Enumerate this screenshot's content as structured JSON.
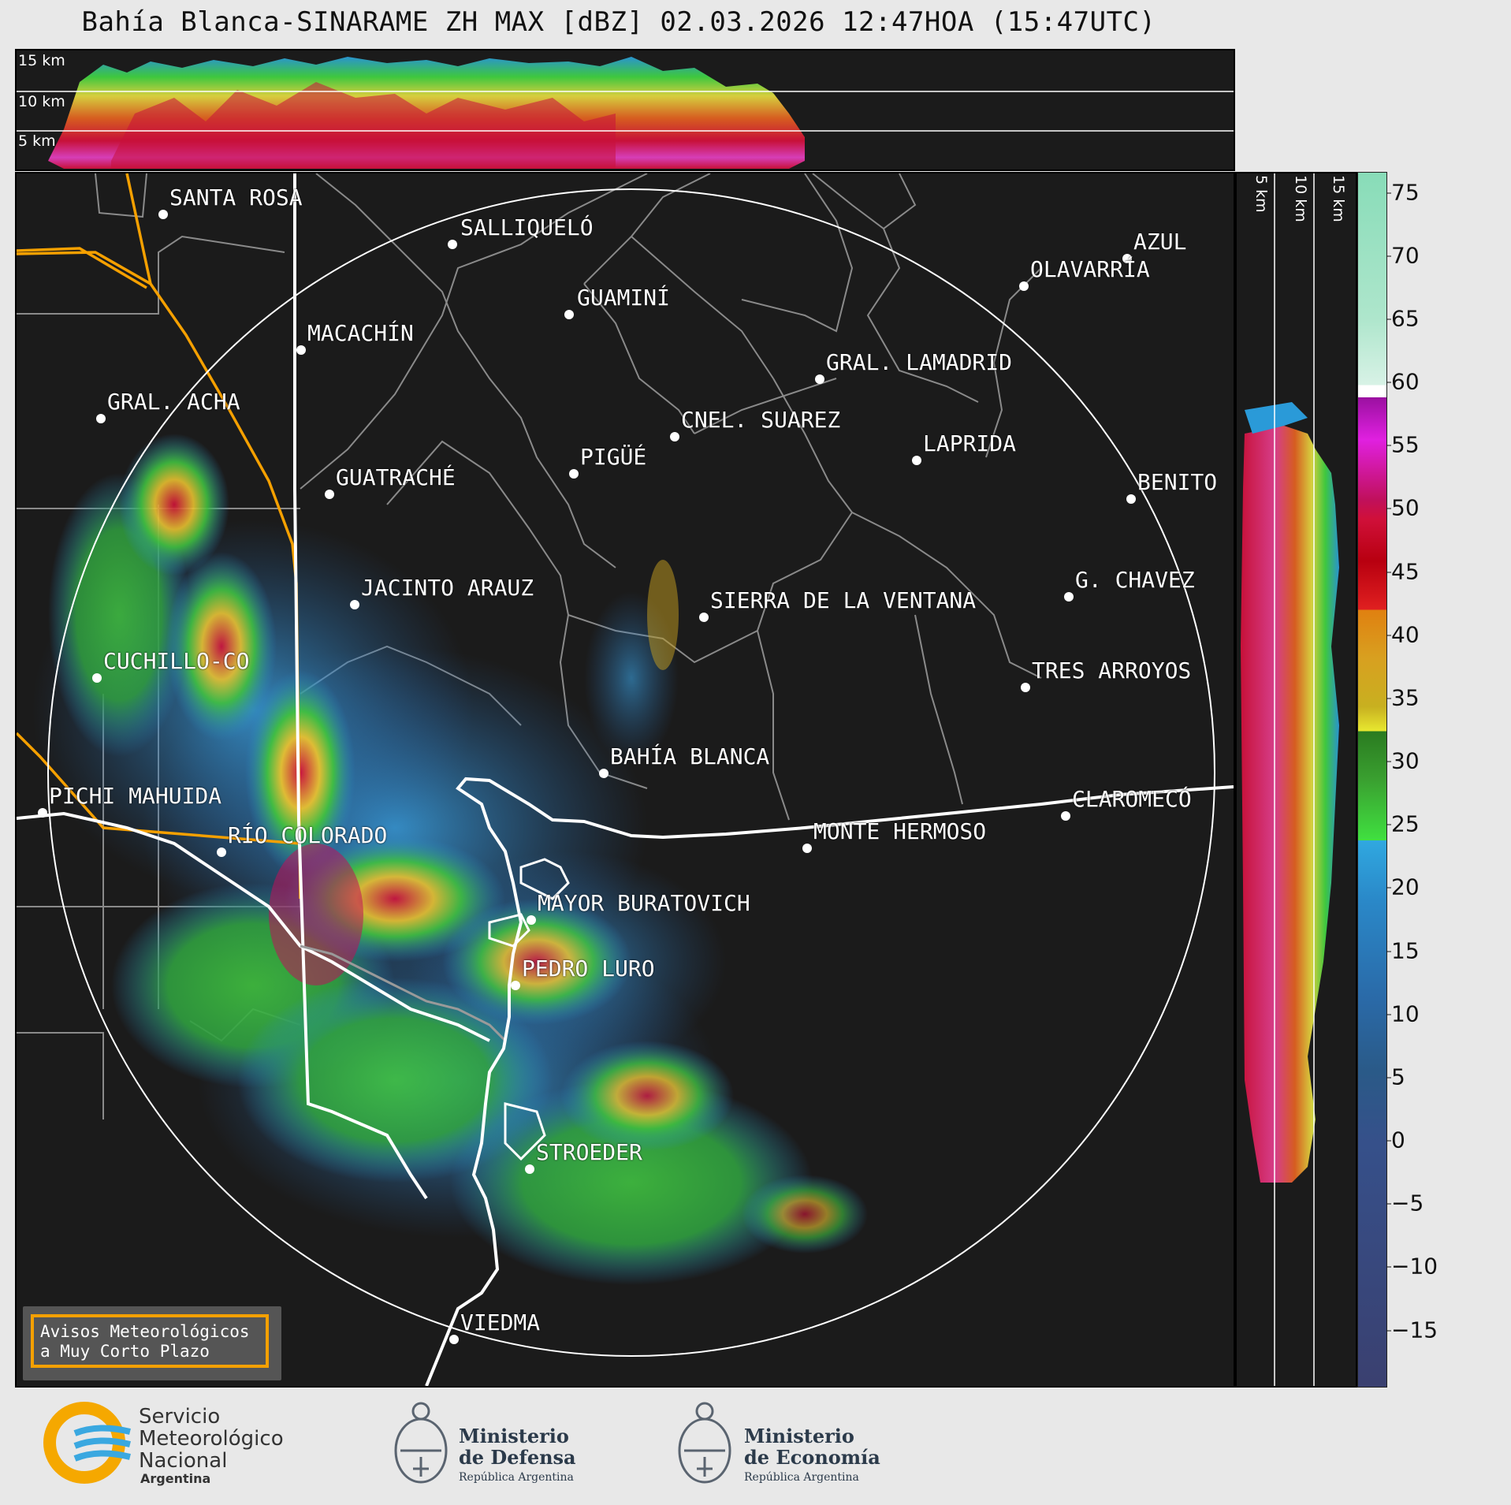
{
  "title": "Bahía Blanca-SINARAME ZH MAX [dBZ] 02.03.2026 12:47HOA (15:47UTC)",
  "altitude_labels": {
    "top": [
      "15 km",
      "10 km",
      "5 km"
    ],
    "right": [
      "5 km",
      "10 km",
      "15 km"
    ]
  },
  "colorbar": {
    "unit": "dBZ",
    "ticks": [
      "75",
      "70",
      "65",
      "60",
      "55",
      "50",
      "45",
      "40",
      "35",
      "30",
      "25",
      "20",
      "15",
      "10",
      "5",
      "0",
      "−5",
      "−10",
      "−15"
    ]
  },
  "places": [
    {
      "name": "SANTA ROSA"
    },
    {
      "name": "SALLIQUELÓ"
    },
    {
      "name": "GUAMINÍ"
    },
    {
      "name": "MACACHÍN"
    },
    {
      "name": "GRAL. ACHA"
    },
    {
      "name": "GUATRACHÉ"
    },
    {
      "name": "PIGÜÉ"
    },
    {
      "name": "CNEL. SUAREZ"
    },
    {
      "name": "GRAL. LAMADRID"
    },
    {
      "name": "LAPRIDA"
    },
    {
      "name": "AZUL"
    },
    {
      "name": "OLAVARRÍA"
    },
    {
      "name": "BENITO"
    },
    {
      "name": "G. CHAVEZ"
    },
    {
      "name": "TRES ARROYOS"
    },
    {
      "name": "SIERRA DE LA VENTANA"
    },
    {
      "name": "JACINTO ARAUZ"
    },
    {
      "name": "CUCHILLO-CO"
    },
    {
      "name": "BAHÍA BLANCA"
    },
    {
      "name": "PICHI MAHUIDA"
    },
    {
      "name": "RÍO COLORADO"
    },
    {
      "name": "MONTE HERMOSO"
    },
    {
      "name": "CLAROMECÓ"
    },
    {
      "name": "MAYOR BURATOVICH"
    },
    {
      "name": "PEDRO LURO"
    },
    {
      "name": "STROEDER"
    },
    {
      "name": "VIEDMA"
    }
  ],
  "warning": {
    "line1": "Avisos Meteorológicos",
    "line2": "a Muy Corto Plazo"
  },
  "footer": {
    "smn": {
      "line1": "Servicio",
      "line2": "Meteorológico",
      "line3": "Nacional",
      "line4": "Argentina"
    },
    "defensa": {
      "line1": "Ministerio",
      "line2": "de Defensa",
      "sub": "República Argentina"
    },
    "economia": {
      "line1": "Ministerio",
      "line2": "de Economía",
      "sub": "República Argentina"
    }
  },
  "colors": {
    "background": "#1b1b1b",
    "range_ring": "#ffffff",
    "province_border": "#f5a000",
    "department_lines": "#8a8a8a",
    "coast": "#ffffff"
  }
}
